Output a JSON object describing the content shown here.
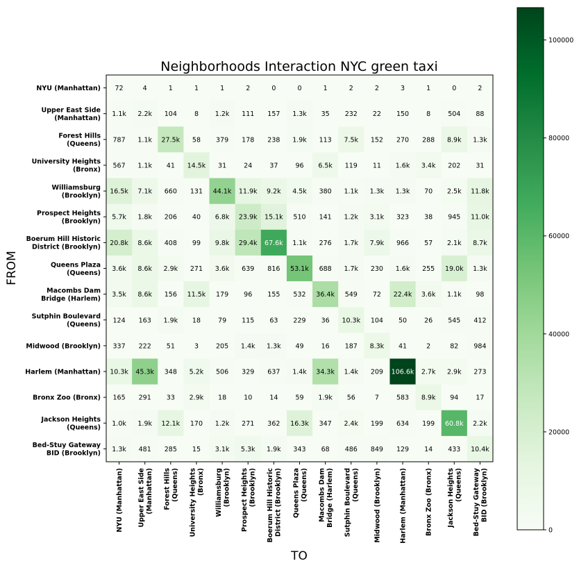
{
  "chart_data": {
    "type": "heatmap",
    "title": "Neighborhoods Interaction NYC green taxi",
    "xlabel": "TO",
    "ylabel": "FROM",
    "colormap": "Greens",
    "colors": {
      "low": "#f7fcf5",
      "high": "#00441b"
    },
    "grid": false,
    "legend": "colorbar-right",
    "categories": [
      [
        "NYU (Manhattan)"
      ],
      [
        "Upper East Side",
        "(Manhattan)"
      ],
      [
        "Forest Hills",
        "(Queens)"
      ],
      [
        "University Heights",
        "(Bronx)"
      ],
      [
        "Williamsburg",
        "(Brooklyn)"
      ],
      [
        "Prospect Heights",
        "(Brooklyn)"
      ],
      [
        "Boerum Hill Historic",
        "District (Brooklyn)"
      ],
      [
        "Queens Plaza",
        "(Queens)"
      ],
      [
        "Macombs Dam",
        "Bridge (Harlem)"
      ],
      [
        "Sutphin Boulevard",
        "(Queens)"
      ],
      [
        "Midwood (Brooklyn)"
      ],
      [
        "Harlem (Manhattan)"
      ],
      [
        "Bronx Zoo (Bronx)"
      ],
      [
        "Jackson Heights",
        "(Queens)"
      ],
      [
        "Bed-Stuy Gateway",
        "BID (Brooklyn)"
      ]
    ],
    "values": [
      [
        72,
        4,
        1,
        1,
        1,
        2,
        0,
        0,
        1,
        2,
        2,
        3,
        1,
        0,
        2
      ],
      [
        1100,
        2200,
        104,
        8,
        1200,
        111,
        157,
        1300,
        35,
        232,
        22,
        150,
        8,
        504,
        88
      ],
      [
        787,
        1100,
        27500,
        58,
        379,
        178,
        238,
        1900,
        113,
        7500,
        152,
        270,
        288,
        8900,
        1300
      ],
      [
        567,
        1100,
        41,
        14500,
        31,
        24,
        37,
        96,
        6500,
        119,
        11,
        1600,
        3400,
        202,
        31
      ],
      [
        16500,
        7100,
        660,
        131,
        44100,
        11900,
        9200,
        4500,
        380,
        1100,
        1300,
        1300,
        70,
        2500,
        11800
      ],
      [
        5700,
        1800,
        206,
        40,
        6800,
        23900,
        15100,
        510,
        141,
        1200,
        3100,
        323,
        38,
        945,
        11000
      ],
      [
        20800,
        8600,
        408,
        99,
        9800,
        29400,
        67600,
        1100,
        276,
        1700,
        7900,
        966,
        57,
        2100,
        8700
      ],
      [
        3600,
        8600,
        2900,
        271,
        3600,
        639,
        816,
        53100,
        688,
        1700,
        230,
        1600,
        255,
        19000,
        1300
      ],
      [
        3500,
        8600,
        156,
        11500,
        179,
        96,
        155,
        532,
        36400,
        549,
        72,
        22400,
        3600,
        1100,
        98
      ],
      [
        124,
        163,
        1900,
        18,
        79,
        115,
        63,
        229,
        36,
        10300,
        104,
        50,
        26,
        545,
        412
      ],
      [
        337,
        222,
        51,
        3,
        205,
        1400,
        1300,
        49,
        16,
        187,
        8300,
        41,
        2,
        82,
        984
      ],
      [
        10300,
        45300,
        348,
        5200,
        506,
        329,
        637,
        1400,
        34300,
        1400,
        209,
        106600,
        2700,
        2900,
        273
      ],
      [
        165,
        291,
        33,
        2900,
        18,
        10,
        14,
        59,
        1900,
        56,
        7,
        583,
        8900,
        94,
        17
      ],
      [
        1000,
        1900,
        12100,
        170,
        1200,
        271,
        362,
        16300,
        347,
        2400,
        199,
        634,
        199,
        60800,
        2200
      ],
      [
        1300,
        481,
        285,
        15,
        3100,
        5300,
        1900,
        343,
        68,
        486,
        849,
        129,
        14,
        433,
        10400
      ]
    ],
    "labels": [
      [
        "72",
        "4",
        "1",
        "1",
        "1",
        "2",
        "0",
        "0",
        "1",
        "2",
        "2",
        "3",
        "1",
        "0",
        "2"
      ],
      [
        "1.1k",
        "2.2k",
        "104",
        "8",
        "1.2k",
        "111",
        "157",
        "1.3k",
        "35",
        "232",
        "22",
        "150",
        "8",
        "504",
        "88"
      ],
      [
        "787",
        "1.1k",
        "27.5k",
        "58",
        "379",
        "178",
        "238",
        "1.9k",
        "113",
        "7.5k",
        "152",
        "270",
        "288",
        "8.9k",
        "1.3k"
      ],
      [
        "567",
        "1.1k",
        "41",
        "14.5k",
        "31",
        "24",
        "37",
        "96",
        "6.5k",
        "119",
        "11",
        "1.6k",
        "3.4k",
        "202",
        "31"
      ],
      [
        "16.5k",
        "7.1k",
        "660",
        "131",
        "44.1k",
        "11.9k",
        "9.2k",
        "4.5k",
        "380",
        "1.1k",
        "1.3k",
        "1.3k",
        "70",
        "2.5k",
        "11.8k"
      ],
      [
        "5.7k",
        "1.8k",
        "206",
        "40",
        "6.8k",
        "23.9k",
        "15.1k",
        "510",
        "141",
        "1.2k",
        "3.1k",
        "323",
        "38",
        "945",
        "11.0k"
      ],
      [
        "20.8k",
        "8.6k",
        "408",
        "99",
        "9.8k",
        "29.4k",
        "67.6k",
        "1.1k",
        "276",
        "1.7k",
        "7.9k",
        "966",
        "57",
        "2.1k",
        "8.7k"
      ],
      [
        "3.6k",
        "8.6k",
        "2.9k",
        "271",
        "3.6k",
        "639",
        "816",
        "53.1k",
        "688",
        "1.7k",
        "230",
        "1.6k",
        "255",
        "19.0k",
        "1.3k"
      ],
      [
        "3.5k",
        "8.6k",
        "156",
        "11.5k",
        "179",
        "96",
        "155",
        "532",
        "36.4k",
        "549",
        "72",
        "22.4k",
        "3.6k",
        "1.1k",
        "98"
      ],
      [
        "124",
        "163",
        "1.9k",
        "18",
        "79",
        "115",
        "63",
        "229",
        "36",
        "10.3k",
        "104",
        "50",
        "26",
        "545",
        "412"
      ],
      [
        "337",
        "222",
        "51",
        "3",
        "205",
        "1.4k",
        "1.3k",
        "49",
        "16",
        "187",
        "8.3k",
        "41",
        "2",
        "82",
        "984"
      ],
      [
        "10.3k",
        "45.3k",
        "348",
        "5.2k",
        "506",
        "329",
        "637",
        "1.4k",
        "34.3k",
        "1.4k",
        "209",
        "106.6k",
        "2.7k",
        "2.9k",
        "273"
      ],
      [
        "165",
        "291",
        "33",
        "2.9k",
        "18",
        "10",
        "14",
        "59",
        "1.9k",
        "56",
        "7",
        "583",
        "8.9k",
        "94",
        "17"
      ],
      [
        "1.0k",
        "1.9k",
        "12.1k",
        "170",
        "1.2k",
        "271",
        "362",
        "16.3k",
        "347",
        "2.4k",
        "199",
        "634",
        "199",
        "60.8k",
        "2.2k"
      ],
      [
        "1.3k",
        "481",
        "285",
        "15",
        "3.1k",
        "5.3k",
        "1.9k",
        "343",
        "68",
        "486",
        "849",
        "129",
        "14",
        "433",
        "10.4k"
      ]
    ],
    "colorbar": {
      "vmin": 0,
      "vmax": 106600,
      "ticks": [
        0,
        20000,
        40000,
        60000,
        80000,
        100000
      ],
      "tick_labels": [
        "0",
        "20000",
        "40000",
        "60000",
        "80000",
        "100000"
      ]
    }
  }
}
